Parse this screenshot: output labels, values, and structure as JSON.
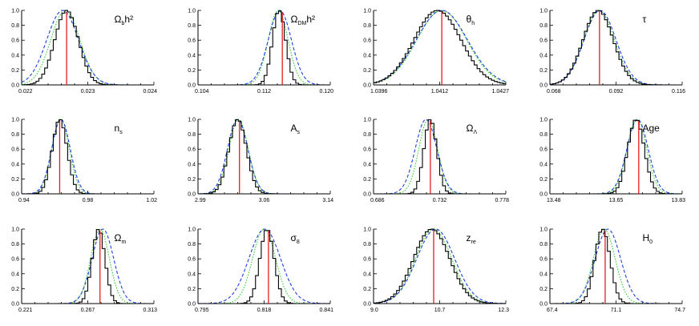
{
  "chart_data": [
    {
      "type": "line",
      "label": {
        "main": "Ω",
        "sub": "b",
        "suffix": "h²"
      },
      "xticks": [
        "0.022",
        "0.023",
        "0.024"
      ],
      "xlim": [
        0.022,
        0.024
      ],
      "ylim": [
        0,
        1
      ],
      "yticks": [
        "0.0",
        "0.2",
        "0.4",
        "0.6",
        "0.8",
        "1.0"
      ],
      "true_value": 0.02268,
      "series": [
        {
          "style": "black-solid",
          "center": 0.02268,
          "sigma": 0.00018,
          "steps": true
        },
        {
          "style": "green-dotted",
          "center": 0.02266,
          "sigma": 0.00022
        },
        {
          "style": "blue-dashed",
          "center": 0.02262,
          "sigma": 0.00024
        }
      ]
    },
    {
      "type": "line",
      "label": {
        "main": "Ω",
        "sub": "DM",
        "suffix": "h²"
      },
      "xticks": [
        "0.104",
        "0.112",
        "0.120"
      ],
      "xlim": [
        0.104,
        0.12
      ],
      "ylim": [
        0,
        1
      ],
      "yticks": [
        "0.0",
        "0.2",
        "0.4",
        "0.6",
        "0.8",
        "1.0"
      ],
      "true_value": 0.1142,
      "series": [
        {
          "style": "black-solid",
          "center": 0.1138,
          "sigma": 0.0008,
          "steps": true
        },
        {
          "style": "green-dotted",
          "center": 0.1137,
          "sigma": 0.0012
        },
        {
          "style": "blue-dashed",
          "center": 0.1139,
          "sigma": 0.0014
        }
      ]
    },
    {
      "type": "line",
      "label": {
        "main": "θ",
        "sub": "h",
        "suffix": ""
      },
      "xticks": [
        "1.0396",
        "1.0412",
        "1.0427"
      ],
      "xlim": [
        1.0396,
        1.0427
      ],
      "ylim": [
        0,
        1
      ],
      "yticks": [
        "0.0",
        "0.2",
        "0.4",
        "0.6",
        "0.8",
        "1.0"
      ],
      "true_value": 1.0412,
      "series": [
        {
          "style": "black-solid",
          "center": 1.0411,
          "sigma": 0.00055,
          "steps": true
        },
        {
          "style": "green-dotted",
          "center": 1.0412,
          "sigma": 0.00058
        },
        {
          "style": "blue-dashed",
          "center": 1.0412,
          "sigma": 0.0006
        }
      ]
    },
    {
      "type": "line",
      "label": {
        "main": "τ",
        "sub": "",
        "suffix": ""
      },
      "xticks": [
        "0.068",
        "0.092",
        "0.116"
      ],
      "xlim": [
        0.068,
        0.116
      ],
      "ylim": [
        0,
        1
      ],
      "yticks": [
        "0.0",
        "0.2",
        "0.4",
        "0.6",
        "0.8",
        "1.0"
      ],
      "true_value": 0.086,
      "series": [
        {
          "style": "black-solid",
          "center": 0.0855,
          "sigma": 0.0055,
          "steps": true
        },
        {
          "style": "green-dotted",
          "center": 0.0858,
          "sigma": 0.0056
        },
        {
          "style": "blue-dashed",
          "center": 0.0862,
          "sigma": 0.0058
        }
      ]
    },
    {
      "type": "line",
      "label": {
        "main": "n",
        "sub": "s",
        "suffix": ""
      },
      "xticks": [
        "0.94",
        "0.98",
        "1.02"
      ],
      "xlim": [
        0.94,
        1.02
      ],
      "ylim": [
        0,
        1
      ],
      "yticks": [
        "0.0",
        "0.2",
        "0.4",
        "0.6",
        "0.8",
        "1.0"
      ],
      "true_value": 0.963,
      "series": [
        {
          "style": "black-solid",
          "center": 0.963,
          "sigma": 0.0045,
          "steps": true
        },
        {
          "style": "green-dotted",
          "center": 0.9635,
          "sigma": 0.0053
        },
        {
          "style": "blue-dashed",
          "center": 0.9638,
          "sigma": 0.0056
        }
      ]
    },
    {
      "type": "line",
      "label": {
        "main": "A",
        "sub": "s",
        "suffix": ""
      },
      "xticks": [
        "2.99",
        "3.06",
        "3.14"
      ],
      "xlim": [
        2.99,
        3.14
      ],
      "ylim": [
        0,
        1
      ],
      "yticks": [
        "0.0",
        "0.2",
        "0.4",
        "0.6",
        "0.8",
        "1.0"
      ],
      "true_value": 3.037,
      "series": [
        {
          "style": "black-solid",
          "center": 3.035,
          "sigma": 0.01,
          "steps": true
        },
        {
          "style": "green-dotted",
          "center": 3.036,
          "sigma": 0.011
        },
        {
          "style": "blue-dashed",
          "center": 3.035,
          "sigma": 0.0115
        }
      ]
    },
    {
      "type": "line",
      "label": {
        "main": "Ω",
        "sub": "Λ",
        "suffix": ""
      },
      "xticks": [
        "0.686",
        "0.732",
        "0.778"
      ],
      "xlim": [
        0.686,
        0.778
      ],
      "ylim": [
        0,
        1
      ],
      "yticks": [
        "0.0",
        "0.2",
        "0.4",
        "0.6",
        "0.8",
        "1.0"
      ],
      "true_value": 0.7255,
      "series": [
        {
          "style": "black-solid",
          "center": 0.7255,
          "sigma": 0.0045,
          "steps": true
        },
        {
          "style": "green-dotted",
          "center": 0.724,
          "sigma": 0.0065
        },
        {
          "style": "blue-dashed",
          "center": 0.7225,
          "sigma": 0.0075
        }
      ]
    },
    {
      "type": "line",
      "label": {
        "main": "Age",
        "sub": "",
        "suffix": ""
      },
      "xticks": [
        "13.48",
        "13.65",
        "13.83"
      ],
      "xlim": [
        13.48,
        13.83
      ],
      "ylim": [
        0,
        1
      ],
      "yticks": [
        "0.0",
        "0.2",
        "0.4",
        "0.6",
        "0.8",
        "1.0"
      ],
      "true_value": 13.715,
      "series": [
        {
          "style": "black-solid",
          "center": 13.708,
          "sigma": 0.022,
          "steps": true
        },
        {
          "style": "green-dotted",
          "center": 13.71,
          "sigma": 0.026
        },
        {
          "style": "blue-dashed",
          "center": 13.712,
          "sigma": 0.028
        }
      ]
    },
    {
      "type": "line",
      "label": {
        "main": "Ω",
        "sub": "m",
        "suffix": ""
      },
      "xticks": [
        "0.221",
        "0.267",
        "0.313"
      ],
      "xlim": [
        0.221,
        0.313
      ],
      "ylim": [
        0,
        1
      ],
      "yticks": [
        "0.0",
        "0.2",
        "0.4",
        "0.6",
        "0.8",
        "1.0"
      ],
      "true_value": 0.2755,
      "series": [
        {
          "style": "black-solid",
          "center": 0.2745,
          "sigma": 0.0045,
          "steps": true
        },
        {
          "style": "green-dotted",
          "center": 0.2755,
          "sigma": 0.0065
        },
        {
          "style": "blue-dashed",
          "center": 0.2775,
          "sigma": 0.0075
        }
      ]
    },
    {
      "type": "line",
      "label": {
        "main": "σ",
        "sub": "8",
        "suffix": ""
      },
      "xticks": [
        "0.795",
        "0.818",
        "0.841"
      ],
      "xlim": [
        0.795,
        0.841
      ],
      "ylim": [
        0,
        1
      ],
      "yticks": [
        "0.0",
        "0.2",
        "0.4",
        "0.6",
        "0.8",
        "1.0"
      ],
      "true_value": 0.8195,
      "series": [
        {
          "style": "black-solid",
          "center": 0.819,
          "sigma": 0.0025,
          "steps": true
        },
        {
          "style": "green-dotted",
          "center": 0.818,
          "sigma": 0.004
        },
        {
          "style": "blue-dashed",
          "center": 0.8182,
          "sigma": 0.0055
        }
      ]
    },
    {
      "type": "line",
      "label": {
        "main": "z",
        "sub": "re",
        "suffix": ""
      },
      "xticks": [
        "9.0",
        "10.7",
        "12.3"
      ],
      "xlim": [
        9.0,
        12.3
      ],
      "ylim": [
        0,
        1
      ],
      "yticks": [
        "0.0",
        "0.2",
        "0.4",
        "0.6",
        "0.8",
        "1.0"
      ],
      "true_value": 10.5,
      "series": [
        {
          "style": "black-solid",
          "center": 10.45,
          "sigma": 0.45,
          "steps": true
        },
        {
          "style": "green-dotted",
          "center": 10.5,
          "sigma": 0.45
        },
        {
          "style": "blue-dashed",
          "center": 10.55,
          "sigma": 0.47
        }
      ]
    },
    {
      "type": "line",
      "label": {
        "main": "H",
        "sub": "0",
        "suffix": ""
      },
      "xticks": [
        "67.4",
        "71.1",
        "74.7"
      ],
      "xlim": [
        67.4,
        74.7
      ],
      "ylim": [
        0,
        1
      ],
      "yticks": [
        "0.0",
        "0.2",
        "0.4",
        "0.6",
        "0.8",
        "1.0"
      ],
      "true_value": 70.45,
      "series": [
        {
          "style": "black-solid",
          "center": 70.3,
          "sigma": 0.42,
          "steps": true
        },
        {
          "style": "green-dotted",
          "center": 70.4,
          "sigma": 0.6
        },
        {
          "style": "blue-dashed",
          "center": 70.6,
          "sigma": 0.7
        }
      ]
    }
  ],
  "colors": {
    "truth_line": "#e02020",
    "black": "#000000",
    "green": "#33cc33",
    "blue": "#1f3fe0"
  }
}
